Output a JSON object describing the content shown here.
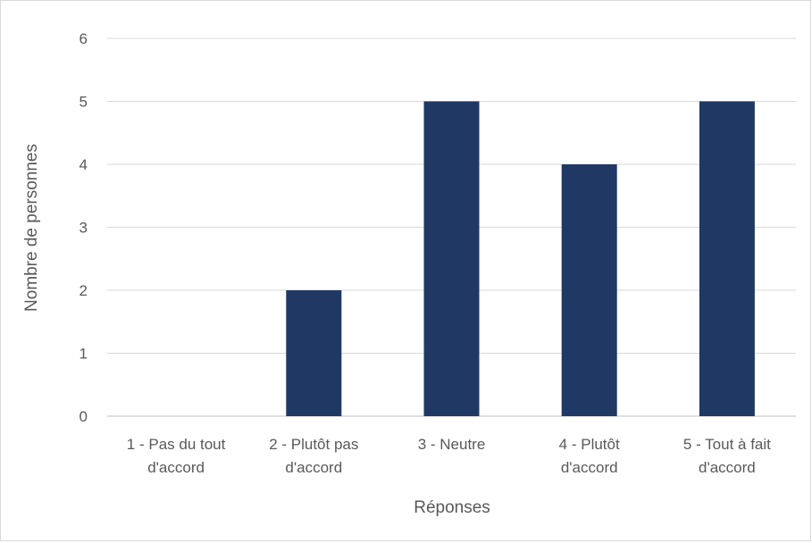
{
  "chart_data": {
    "type": "bar",
    "title": "",
    "xlabel": "Réponses",
    "ylabel": "Nombre de personnes",
    "ylim": [
      0,
      6
    ],
    "yticks": [
      "0",
      "1",
      "2",
      "3",
      "4",
      "5",
      "6"
    ],
    "categories": [
      [
        "1 - Pas du tout",
        "d'accord"
      ],
      [
        "2 - Plutôt pas",
        "d'accord"
      ],
      [
        "3 - Neutre"
      ],
      [
        "4 - Plutôt",
        "d'accord"
      ],
      [
        "5 - Tout à fait",
        "d'accord"
      ]
    ],
    "values": [
      0,
      2,
      5,
      4,
      5
    ],
    "bar_color": "#203864",
    "grid": true,
    "legend": "none"
  }
}
